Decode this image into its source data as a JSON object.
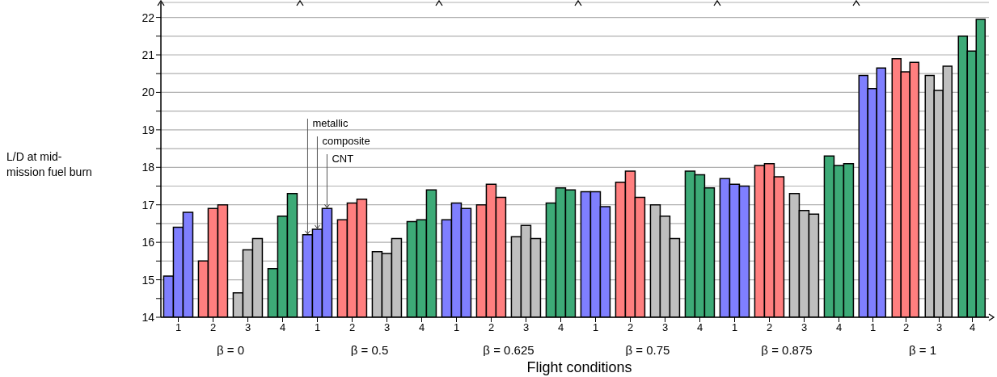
{
  "chart_data": [
    {
      "type": "bar",
      "xlabel": "β = 0",
      "ylabel": "L/D at mid-mission fuel burn",
      "annotations": [
        "Flight conditions"
      ],
      "categories": [
        "1",
        "2",
        "3",
        "4"
      ],
      "ylim": [
        14,
        22.4
      ],
      "yticks": [
        14,
        {
          "value": 14.5,
          "label": null
        },
        15,
        {
          "value": 15.5,
          "label": null
        },
        16,
        {
          "value": 16.5,
          "label": null
        },
        17,
        {
          "value": 17.5,
          "label": null
        },
        18,
        {
          "value": 18.5,
          "label": null
        },
        19,
        {
          "value": 19.5,
          "label": null
        },
        20,
        {
          "value": 20.5,
          "label": null
        },
        21,
        {
          "value": 21.5,
          "label": null
        },
        22
      ],
      "grid": "y",
      "legend": false,
      "series": [
        {
          "colors": [
            "#7f7fff",
            "#ff7f7f",
            "#bfbfbf",
            "#3daa77"
          ],
          "values": [
            15.1,
            15.5,
            14.65,
            15.3
          ]
        },
        {
          "colors": [
            "#7f7fff",
            "#ff7f7f",
            "#bfbfbf",
            "#3daa77"
          ],
          "values": [
            16.4,
            16.9,
            15.8,
            16.7
          ]
        },
        {
          "colors": [
            "#7f7fff",
            "#ff7f7f",
            "#bfbfbf",
            "#3daa77"
          ],
          "values": [
            16.8,
            17.0,
            16.1,
            17.3
          ]
        }
      ]
    },
    {
      "type": "bar",
      "xlabel": "β = 0.5",
      "categories": [
        "1",
        "2",
        "3",
        "4"
      ],
      "ylim": [
        14,
        22.4
      ],
      "yticks": [
        14,
        {
          "value": 14.5,
          "label": null
        },
        15,
        {
          "value": 15.5,
          "label": null
        },
        16,
        {
          "value": 16.5,
          "label": null
        },
        17,
        {
          "value": 17.5,
          "label": null
        },
        18,
        {
          "value": 18.5,
          "label": null
        },
        19,
        {
          "value": 19.5,
          "label": null
        },
        20,
        {
          "value": 20.5,
          "label": null
        },
        21,
        {
          "value": 21.5,
          "label": null
        },
        22
      ],
      "grid": "y",
      "legend": false,
      "tick_labels": "x",
      "series": [
        {
          "name": "metallic",
          "colors": [
            "#7f7fff",
            "#ff7f7f",
            "#bfbfbf",
            "#3daa77"
          ],
          "values": [
            16.2,
            16.6,
            15.75,
            16.55
          ]
        },
        {
          "name": "composite",
          "colors": [
            "#7f7fff",
            "#ff7f7f",
            "#bfbfbf",
            "#3daa77"
          ],
          "values": [
            16.35,
            17.05,
            15.7,
            16.6
          ]
        },
        {
          "name": "CNT",
          "colors": [
            "#7f7fff",
            "#ff7f7f",
            "#bfbfbf",
            "#3daa77"
          ],
          "values": [
            16.9,
            17.15,
            16.1,
            17.4
          ]
        }
      ]
    },
    {
      "type": "bar",
      "xlabel": "β = 0.625",
      "categories": [
        "1",
        "2",
        "3",
        "4"
      ],
      "ylim": [
        14,
        22.4
      ],
      "yticks": [
        14,
        {
          "value": 14.5,
          "label": null
        },
        15,
        {
          "value": 15.5,
          "label": null
        },
        16,
        {
          "value": 16.5,
          "label": null
        },
        17,
        {
          "value": 17.5,
          "label": null
        },
        18,
        {
          "value": 18.5,
          "label": null
        },
        19,
        {
          "value": 19.5,
          "label": null
        },
        20,
        {
          "value": 20.5,
          "label": null
        },
        21,
        {
          "value": 21.5,
          "label": null
        },
        22
      ],
      "grid": "y",
      "legend": false,
      "tick_labels": "x",
      "series": [
        {
          "colors": [
            "#7f7fff",
            "#ff7f7f",
            "#bfbfbf",
            "#3daa77"
          ],
          "values": [
            16.6,
            17.0,
            16.15,
            17.05
          ]
        },
        {
          "colors": [
            "#7f7fff",
            "#ff7f7f",
            "#bfbfbf",
            "#3daa77"
          ],
          "values": [
            17.05,
            17.55,
            16.45,
            17.45
          ]
        },
        {
          "colors": [
            "#7f7fff",
            "#ff7f7f",
            "#bfbfbf",
            "#3daa77"
          ],
          "values": [
            16.9,
            17.2,
            16.1,
            17.4
          ]
        }
      ]
    },
    {
      "type": "bar",
      "xlabel": "β = 0.75",
      "categories": [
        "1",
        "2",
        "3",
        "4"
      ],
      "ylim": [
        14,
        22.4
      ],
      "yticks": [
        14,
        {
          "value": 14.5,
          "label": null
        },
        15,
        {
          "value": 15.5,
          "label": null
        },
        16,
        {
          "value": 16.5,
          "label": null
        },
        17,
        {
          "value": 17.5,
          "label": null
        },
        18,
        {
          "value": 18.5,
          "label": null
        },
        19,
        {
          "value": 19.5,
          "label": null
        },
        20,
        {
          "value": 20.5,
          "label": null
        },
        21,
        {
          "value": 21.5,
          "label": null
        },
        22
      ],
      "grid": "y",
      "legend": false,
      "tick_labels": "x",
      "series": [
        {
          "colors": [
            "#7f7fff",
            "#ff7f7f",
            "#bfbfbf",
            "#3daa77"
          ],
          "values": [
            17.35,
            17.6,
            17.0,
            17.9
          ]
        },
        {
          "colors": [
            "#7f7fff",
            "#ff7f7f",
            "#bfbfbf",
            "#3daa77"
          ],
          "values": [
            17.35,
            17.9,
            16.7,
            17.8
          ]
        },
        {
          "colors": [
            "#7f7fff",
            "#ff7f7f",
            "#bfbfbf",
            "#3daa77"
          ],
          "values": [
            16.95,
            17.2,
            16.1,
            17.45
          ]
        }
      ]
    },
    {
      "type": "bar",
      "xlabel": "β = 0.875",
      "categories": [
        "1",
        "2",
        "3",
        "4"
      ],
      "ylim": [
        14,
        22.4
      ],
      "yticks": [
        14,
        {
          "value": 14.5,
          "label": null
        },
        15,
        {
          "value": 15.5,
          "label": null
        },
        16,
        {
          "value": 16.5,
          "label": null
        },
        17,
        {
          "value": 17.5,
          "label": null
        },
        18,
        {
          "value": 18.5,
          "label": null
        },
        19,
        {
          "value": 19.5,
          "label": null
        },
        20,
        {
          "value": 20.5,
          "label": null
        },
        21,
        {
          "value": 21.5,
          "label": null
        },
        22
      ],
      "grid": "y",
      "legend": false,
      "tick_labels": "x",
      "series": [
        {
          "colors": [
            "#7f7fff",
            "#ff7f7f",
            "#bfbfbf",
            "#3daa77"
          ],
          "values": [
            17.7,
            18.05,
            17.3,
            18.3
          ]
        },
        {
          "colors": [
            "#7f7fff",
            "#ff7f7f",
            "#bfbfbf",
            "#3daa77"
          ],
          "values": [
            17.55,
            18.1,
            16.85,
            18.05
          ]
        },
        {
          "colors": [
            "#7f7fff",
            "#ff7f7f",
            "#bfbfbf",
            "#3daa77"
          ],
          "values": [
            17.5,
            17.75,
            16.75,
            18.1
          ]
        }
      ]
    },
    {
      "type": "bar",
      "xlabel": "β = 1",
      "categories": [
        "1",
        "2",
        "3",
        "4"
      ],
      "ylim": [
        14,
        22.4
      ],
      "yticks": [
        14,
        {
          "value": 14.5,
          "label": null
        },
        15,
        {
          "value": 15.5,
          "label": null
        },
        16,
        {
          "value": 16.5,
          "label": null
        },
        17,
        {
          "value": 17.5,
          "label": null
        },
        18,
        {
          "value": 18.5,
          "label": null
        },
        19,
        {
          "value": 19.5,
          "label": null
        },
        20,
        {
          "value": 20.5,
          "label": null
        },
        21,
        {
          "value": 21.5,
          "label": null
        },
        22
      ],
      "grid": "y",
      "legend": false,
      "tick_labels": "x",
      "series": [
        {
          "colors": [
            "#7f7fff",
            "#ff7f7f",
            "#bfbfbf",
            "#3daa77"
          ],
          "values": [
            20.45,
            20.9,
            20.45,
            21.5
          ]
        },
        {
          "colors": [
            "#7f7fff",
            "#ff7f7f",
            "#bfbfbf",
            "#3daa77"
          ],
          "values": [
            20.1,
            20.55,
            20.05,
            21.1
          ]
        },
        {
          "colors": [
            "#7f7fff",
            "#ff7f7f",
            "#bfbfbf",
            "#3daa77"
          ],
          "values": [
            20.65,
            20.8,
            20.7,
            21.95
          ]
        }
      ]
    }
  ]
}
